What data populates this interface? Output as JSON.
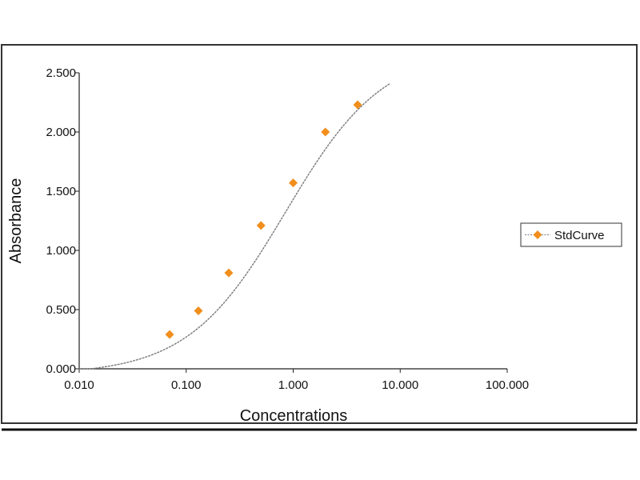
{
  "chart_data": {
    "type": "scatter",
    "title": "",
    "xlabel": "Concentrations",
    "ylabel": "Absorbance",
    "x_scale": "log",
    "xlim": [
      0.01,
      100
    ],
    "ylim": [
      0,
      2.5
    ],
    "x_ticks": [
      {
        "value": 0.01,
        "label": "0.010"
      },
      {
        "value": 0.1,
        "label": "0.100"
      },
      {
        "value": 1,
        "label": "1.000"
      },
      {
        "value": 10,
        "label": "10.000"
      },
      {
        "value": 100,
        "label": "100.000"
      }
    ],
    "y_ticks": [
      {
        "value": 0,
        "label": "0.000"
      },
      {
        "value": 0.5,
        "label": "0.500"
      },
      {
        "value": 1,
        "label": "1.000"
      },
      {
        "value": 1.5,
        "label": "1.500"
      },
      {
        "value": 2,
        "label": "2.000"
      },
      {
        "value": 2.5,
        "label": "2.500"
      }
    ],
    "grid": false,
    "legend_position": "right",
    "series": [
      {
        "name": "StdCurve",
        "marker": "diamond",
        "color": "#F28E1C",
        "x": [
          0.07,
          0.13,
          0.25,
          0.5,
          1.0,
          2.0,
          4.0
        ],
        "y": [
          0.29,
          0.49,
          0.81,
          1.21,
          1.57,
          2.0,
          2.23
        ]
      }
    ],
    "fit_curve": {
      "model": "4PL",
      "color": "#7a7a7a",
      "x_range": [
        0.01,
        8.0
      ],
      "bottom": -0.05,
      "top": 2.7,
      "ec50": 0.85,
      "hill": 0.95
    }
  }
}
